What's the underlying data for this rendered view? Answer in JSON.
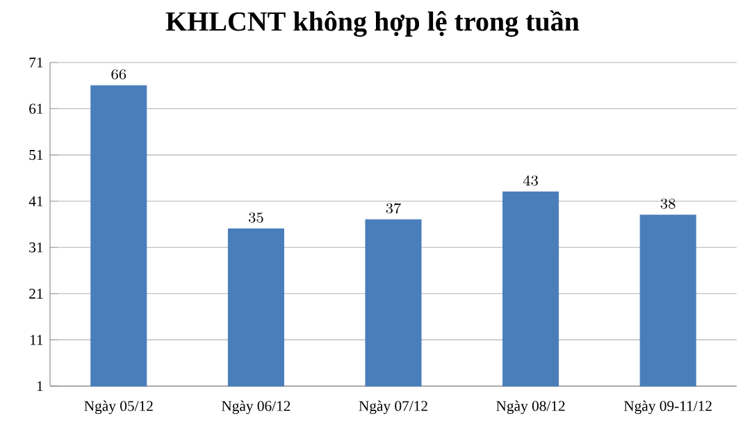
{
  "chart_data": {
    "type": "bar",
    "title": "KHLCNT không hợp lệ trong tuần",
    "categories": [
      "Ngày 05/12",
      "Ngày 06/12",
      "Ngày 07/12",
      "Ngày 08/12",
      "Ngày 09-11/12"
    ],
    "values": [
      66,
      35,
      37,
      43,
      38
    ],
    "color": "#4a7ebb",
    "ylim": [
      1,
      71
    ],
    "yticks": [
      1,
      11,
      21,
      31,
      41,
      51,
      61,
      71
    ],
    "grid": "y",
    "data_labels": true
  }
}
